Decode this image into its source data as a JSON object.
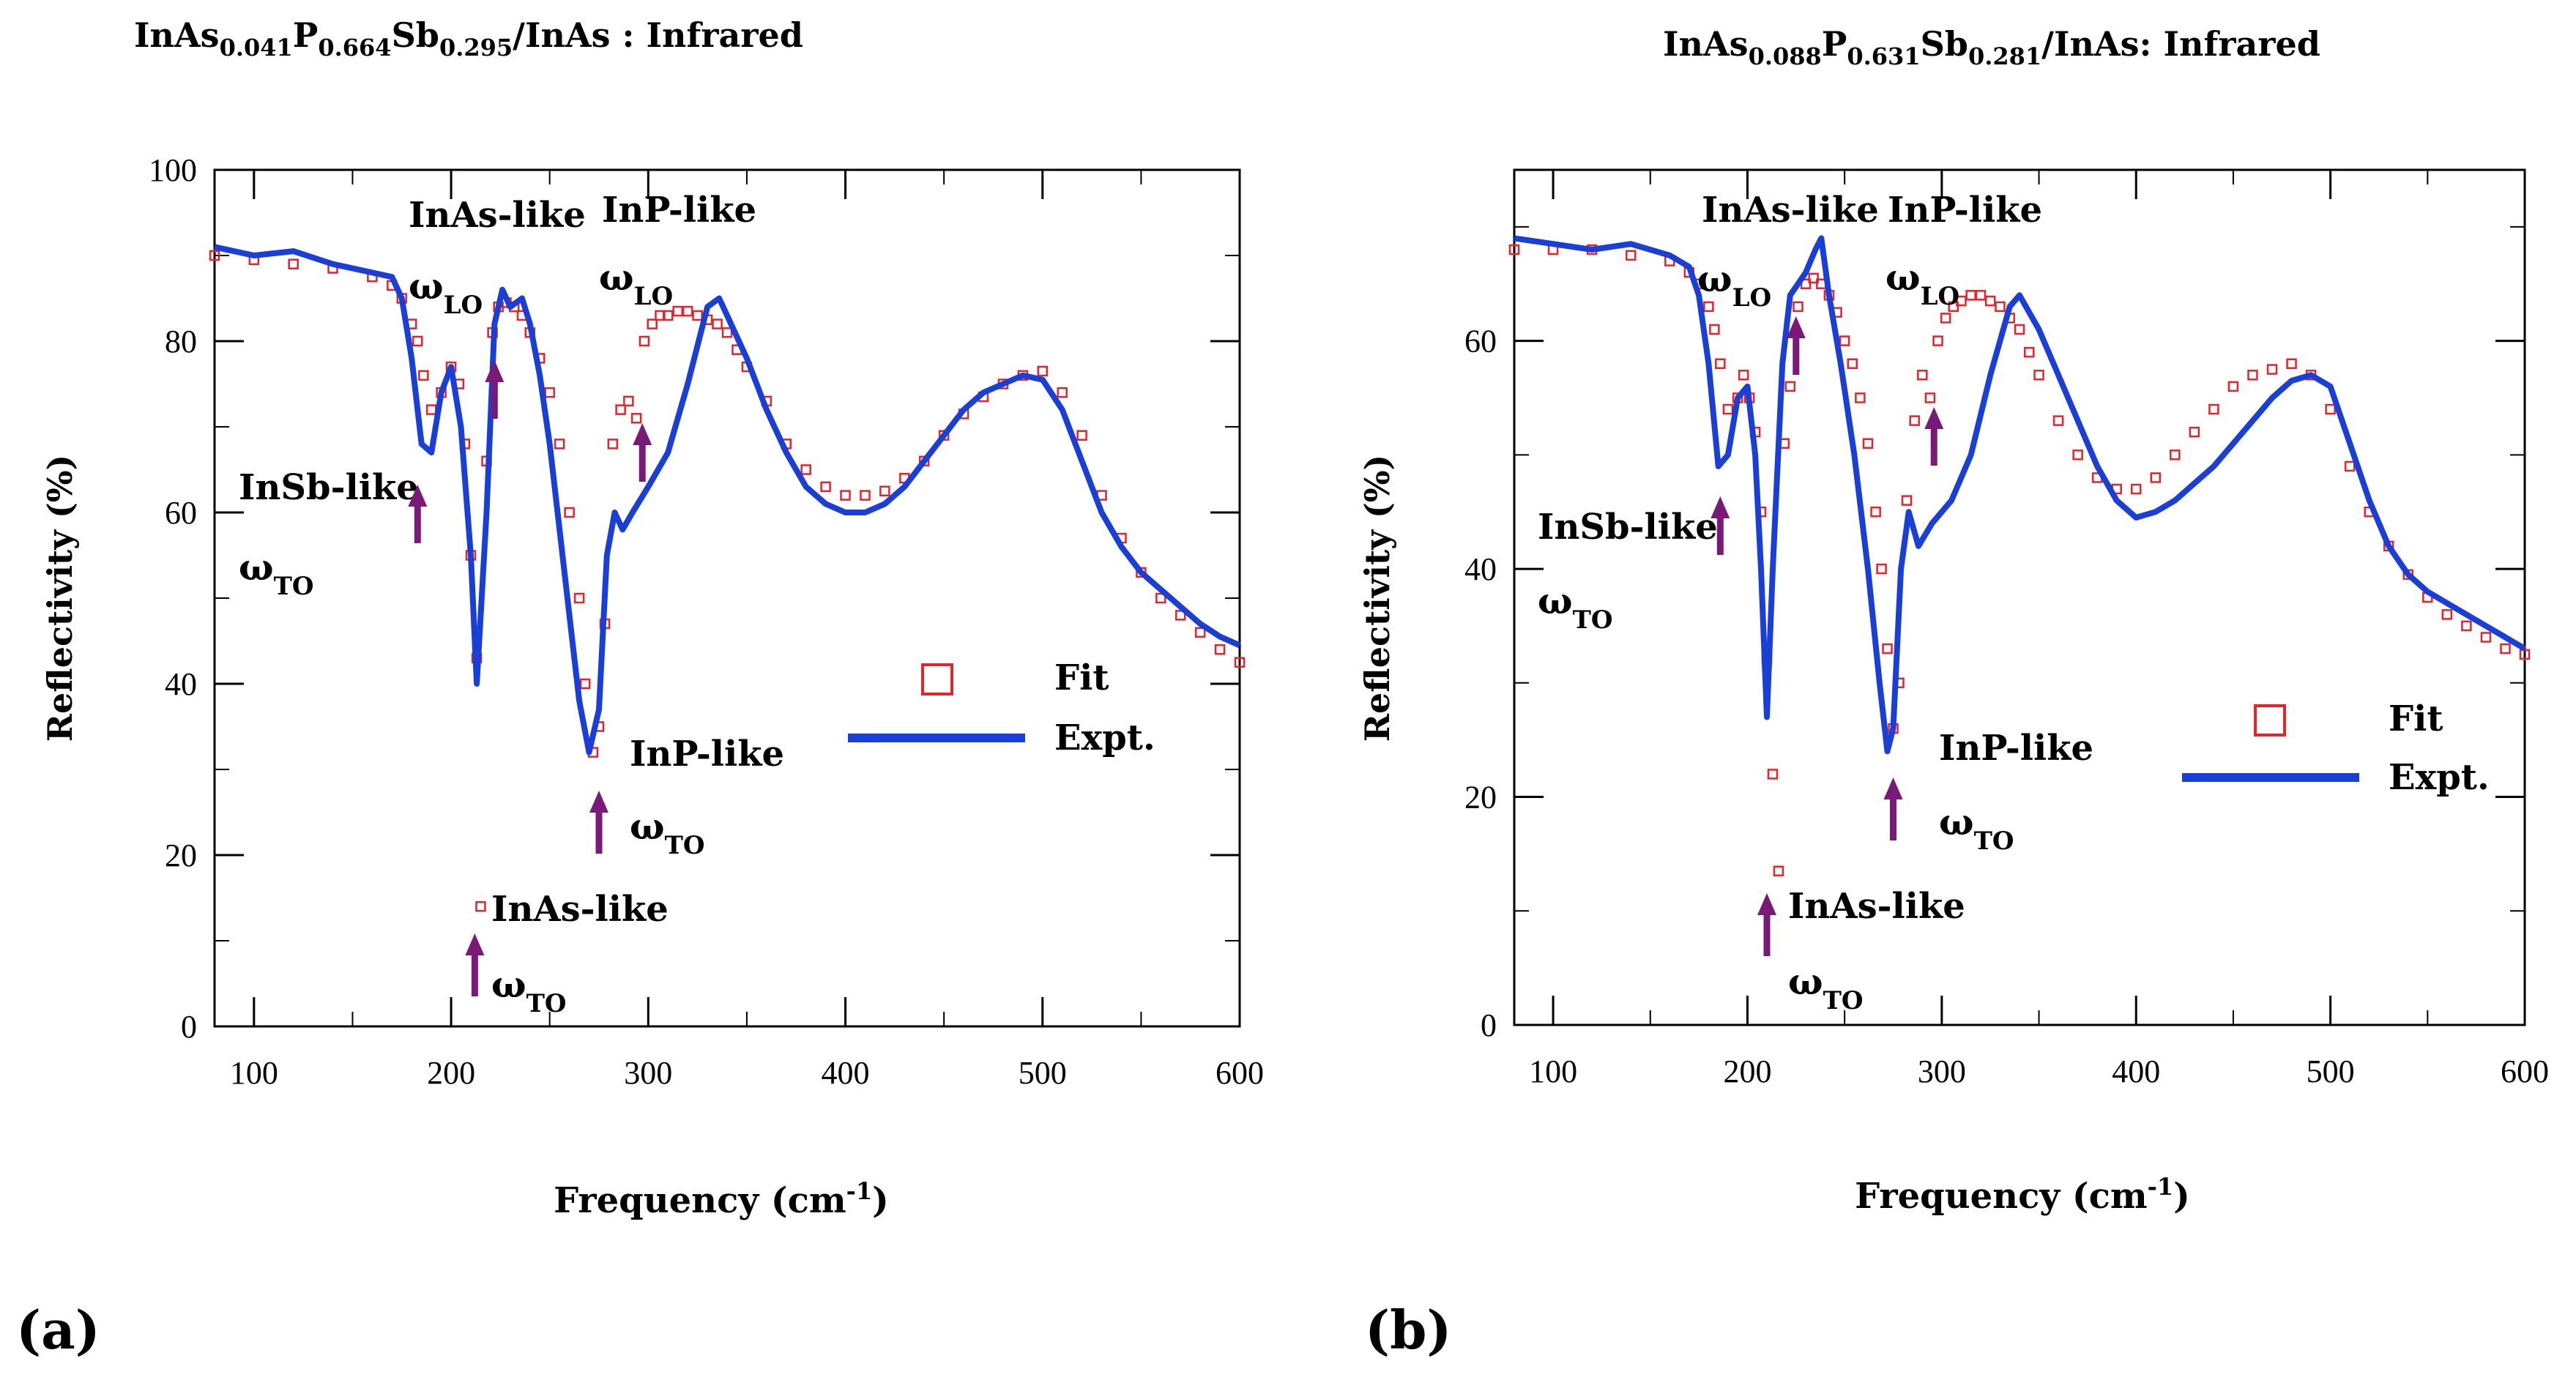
{
  "colors": {
    "expt": "#1a3fd6",
    "fit": "#e3242b",
    "arrow": "#7a1a78",
    "axis": "#000000"
  },
  "panels": [
    {
      "panel_label": "(a)",
      "title": {
        "part1": "InAs",
        "s1": "0.041",
        "part2": "P",
        "s2": "0.664",
        "part3": "Sb",
        "s3": "0.295",
        "part4": "/InAs : Infrared"
      },
      "annotations": {
        "inas_like_lo": "InAs-like",
        "inp_like_lo": "InP-like",
        "omega": "ω",
        "lo": "LO",
        "to": "TO",
        "insb_like": "InSb-like",
        "inp_like_to": "InP-like",
        "inas_like_to": "InAs-like"
      },
      "legend": {
        "fit": "Fit",
        "expt": "Expt."
      }
    },
    {
      "panel_label": "(b)",
      "title": {
        "part1": "InAs",
        "s1": "0.088",
        "part2": "P",
        "s2": "0.631",
        "part3": "Sb",
        "s3": "0.281",
        "part4": "/InAs: Infrared"
      },
      "annotations": {
        "inas_like_lo": "InAs-like",
        "inp_like_lo": "InP-like",
        "omega": "ω",
        "lo": "LO",
        "to": "TO",
        "insb_like": "InSb-like",
        "inp_like_to": "InP-like",
        "inas_like_to": "InAs-like"
      },
      "legend": {
        "fit": "Fit",
        "expt": "Expt."
      }
    }
  ],
  "chart_data": [
    {
      "type": "line",
      "panel": "(a)",
      "title": "InAs0.041P0.664Sb0.295/InAs : Infrared",
      "xlabel": "Frequency (cm-1)",
      "xlabel_main": "Frequency (cm",
      "xlabel_sup": "-1",
      "xlabel_close": ")",
      "ylabel": "Reflectivity (%)",
      "xlim": [
        80,
        600
      ],
      "ylim": [
        0,
        100
      ],
      "xticks": [
        100,
        200,
        300,
        400,
        500,
        600
      ],
      "yticks": [
        0,
        20,
        40,
        60,
        80,
        100
      ],
      "xtick_labels": [
        "100",
        "200",
        "300",
        "400",
        "500",
        "600"
      ],
      "ytick_labels": [
        "0",
        "20",
        "40",
        "60",
        "80",
        "100"
      ],
      "series": [
        {
          "name": "Expt.",
          "style": "line",
          "x": [
            80,
            100,
            120,
            140,
            160,
            170,
            175,
            180,
            185,
            190,
            195,
            200,
            205,
            210,
            213,
            218,
            222,
            226,
            230,
            236,
            240,
            245,
            250,
            255,
            260,
            265,
            270,
            275,
            279,
            283,
            287,
            292,
            300,
            310,
            320,
            330,
            336,
            340,
            350,
            360,
            370,
            380,
            390,
            400,
            410,
            420,
            430,
            440,
            450,
            460,
            470,
            480,
            490,
            500,
            510,
            520,
            530,
            540,
            550,
            560,
            570,
            580,
            590,
            600
          ],
          "y": [
            91,
            90,
            90.5,
            89,
            88,
            87.5,
            85,
            78,
            68,
            67,
            74,
            77,
            70,
            55,
            40,
            60,
            82,
            86,
            84,
            85,
            82,
            76,
            68,
            58,
            48,
            38,
            32,
            37,
            55,
            60,
            58,
            60,
            63,
            67,
            75,
            84,
            85,
            83,
            78,
            72,
            67,
            63,
            61,
            60,
            60,
            61,
            63,
            66,
            69,
            72,
            74,
            75,
            76,
            75.5,
            72,
            66,
            60,
            56,
            53,
            51,
            49,
            47,
            45.5,
            44.5
          ]
        },
        {
          "name": "Fit",
          "style": "markers",
          "x": [
            80,
            100,
            120,
            140,
            160,
            170,
            175,
            180,
            183,
            186,
            190,
            195,
            200,
            204,
            207,
            210,
            213,
            215,
            218,
            221,
            224,
            228,
            232,
            236,
            240,
            245,
            250,
            255,
            260,
            265,
            268,
            272,
            275,
            278,
            282,
            286,
            290,
            294,
            298,
            302,
            306,
            310,
            315,
            320,
            325,
            330,
            335,
            340,
            345,
            350,
            360,
            370,
            380,
            390,
            400,
            410,
            420,
            430,
            440,
            450,
            460,
            470,
            480,
            490,
            500,
            510,
            520,
            530,
            540,
            550,
            560,
            570,
            580,
            590,
            600
          ],
          "y": [
            90,
            89.5,
            89,
            88.5,
            87.5,
            86.5,
            85,
            82,
            80,
            76,
            72,
            74,
            77,
            75,
            68,
            55,
            43,
            14,
            66,
            81,
            84,
            84.5,
            84,
            83,
            81,
            78,
            74,
            68,
            60,
            50,
            40,
            32,
            35,
            47,
            68,
            72,
            73,
            71,
            80,
            82,
            83,
            83,
            83.5,
            83.5,
            83,
            82.5,
            82,
            81,
            79,
            77,
            73,
            68,
            65,
            63,
            62,
            62,
            62.5,
            64,
            66,
            69,
            71.5,
            73.5,
            75,
            76,
            76.5,
            74,
            69,
            62,
            57,
            53,
            50,
            48,
            46,
            44,
            42.5
          ]
        }
      ],
      "legend": [
        "Fit",
        "Expt."
      ],
      "legend_position": "right-middle",
      "arrows_at": [
        183,
        222,
        297,
        275,
        212
      ]
    },
    {
      "type": "line",
      "panel": "(b)",
      "title": "InAs0.088P0.631Sb0.281/InAs: Infrared",
      "xlabel": "Frequency (cm-1)",
      "xlabel_main": "Frequency (cm",
      "xlabel_sup": "-1",
      "xlabel_close": ")",
      "ylabel": "Reflectivity (%)",
      "xlim": [
        80,
        600
      ],
      "ylim": [
        0,
        75
      ],
      "xticks": [
        100,
        200,
        300,
        400,
        500,
        600
      ],
      "yticks": [
        0,
        20,
        40,
        60
      ],
      "xtick_labels": [
        "100",
        "200",
        "300",
        "400",
        "500",
        "600"
      ],
      "ytick_labels": [
        "0",
        "20",
        "40",
        "60"
      ],
      "series": [
        {
          "name": "Expt.",
          "style": "line",
          "x": [
            80,
            100,
            120,
            140,
            160,
            170,
            175,
            180,
            185,
            190,
            195,
            200,
            204,
            207,
            210,
            213,
            218,
            222,
            226,
            230,
            235,
            238,
            242,
            248,
            255,
            262,
            268,
            272,
            275,
            279,
            283,
            288,
            295,
            305,
            315,
            325,
            335,
            340,
            350,
            360,
            370,
            380,
            390,
            400,
            410,
            420,
            430,
            440,
            450,
            460,
            470,
            480,
            490,
            500,
            510,
            520,
            530,
            540,
            550,
            560,
            570,
            580,
            590,
            600
          ],
          "y": [
            69,
            68.5,
            68,
            68.5,
            67.5,
            66.5,
            64,
            58,
            49,
            50,
            55,
            56,
            50,
            40,
            27,
            40,
            58,
            64,
            65,
            66,
            68,
            69,
            64,
            58,
            50,
            40,
            30,
            24,
            26,
            40,
            45,
            42,
            44,
            46,
            50,
            57,
            63,
            64,
            61,
            57,
            53,
            49,
            46,
            44.5,
            45,
            46,
            47.5,
            49,
            51,
            53,
            55,
            56.5,
            57,
            56,
            51,
            46,
            42,
            39.5,
            38,
            37,
            36,
            35,
            34,
            33
          ]
        },
        {
          "name": "Fit",
          "style": "markers",
          "x": [
            80,
            100,
            120,
            140,
            160,
            170,
            175,
            180,
            183,
            186,
            190,
            195,
            198,
            201,
            204,
            207,
            210,
            213,
            216,
            219,
            222,
            226,
            230,
            234,
            238,
            242,
            246,
            250,
            254,
            258,
            262,
            266,
            269,
            272,
            275,
            278,
            282,
            286,
            290,
            294,
            298,
            302,
            306,
            310,
            315,
            320,
            325,
            330,
            335,
            340,
            345,
            350,
            360,
            370,
            380,
            390,
            400,
            410,
            420,
            430,
            440,
            450,
            460,
            470,
            480,
            490,
            500,
            510,
            520,
            530,
            540,
            550,
            560,
            570,
            580,
            590,
            600
          ],
          "y": [
            68,
            68,
            68,
            67.5,
            67,
            66,
            65,
            63,
            61,
            58,
            54,
            55,
            57,
            55,
            52,
            45,
            32,
            22,
            13.5,
            51,
            56,
            63,
            65,
            65.5,
            65,
            64,
            62.5,
            60,
            58,
            55,
            51,
            45,
            40,
            33,
            26,
            30,
            46,
            53,
            57,
            55,
            60,
            62,
            63,
            63.5,
            64,
            64,
            63.5,
            63,
            62,
            61,
            59,
            57,
            53,
            50,
            48,
            47,
            47,
            48,
            50,
            52,
            54,
            56,
            57,
            57.5,
            58,
            57,
            54,
            49,
            45,
            42,
            39.5,
            37.5,
            36,
            35,
            34,
            33,
            32.5
          ]
        }
      ],
      "legend": [
        "Fit",
        "Expt."
      ],
      "legend_position": "right-middle",
      "arrows_at": [
        186,
        225,
        296,
        275,
        210
      ]
    }
  ]
}
